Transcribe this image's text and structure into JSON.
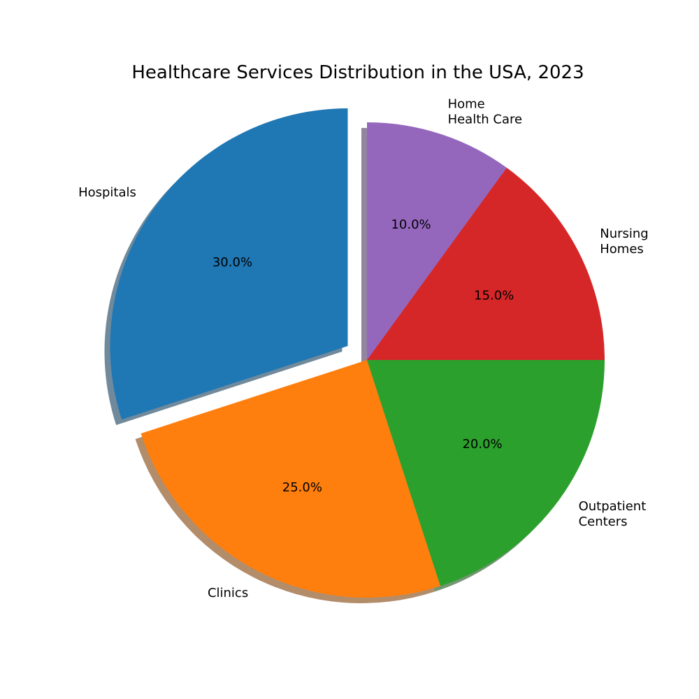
{
  "chart_data": {
    "type": "pie",
    "title": "Healthcare Services Distribution in the USA, 2023",
    "slices": [
      {
        "label": "Hospitals",
        "value": 30.0,
        "pct_text": "30.0%",
        "color": "#1f77b4",
        "exploded": true
      },
      {
        "label": "Clinics",
        "value": 25.0,
        "pct_text": "25.0%",
        "color": "#ff7f0e",
        "exploded": false
      },
      {
        "label": "Outpatient Centers",
        "value": 20.0,
        "pct_text": "20.0%",
        "color": "#2ca02c",
        "exploded": false
      },
      {
        "label": "Nursing Homes",
        "value": 15.0,
        "pct_text": "15.0%",
        "color": "#d62728",
        "exploded": false
      },
      {
        "label": "Home Health Care",
        "value": 10.0,
        "pct_text": "10.0%",
        "color": "#9467bd",
        "exploded": false
      }
    ],
    "start_angle_deg": 90,
    "direction": "counterclockwise",
    "shadow": true,
    "legend": "none"
  }
}
